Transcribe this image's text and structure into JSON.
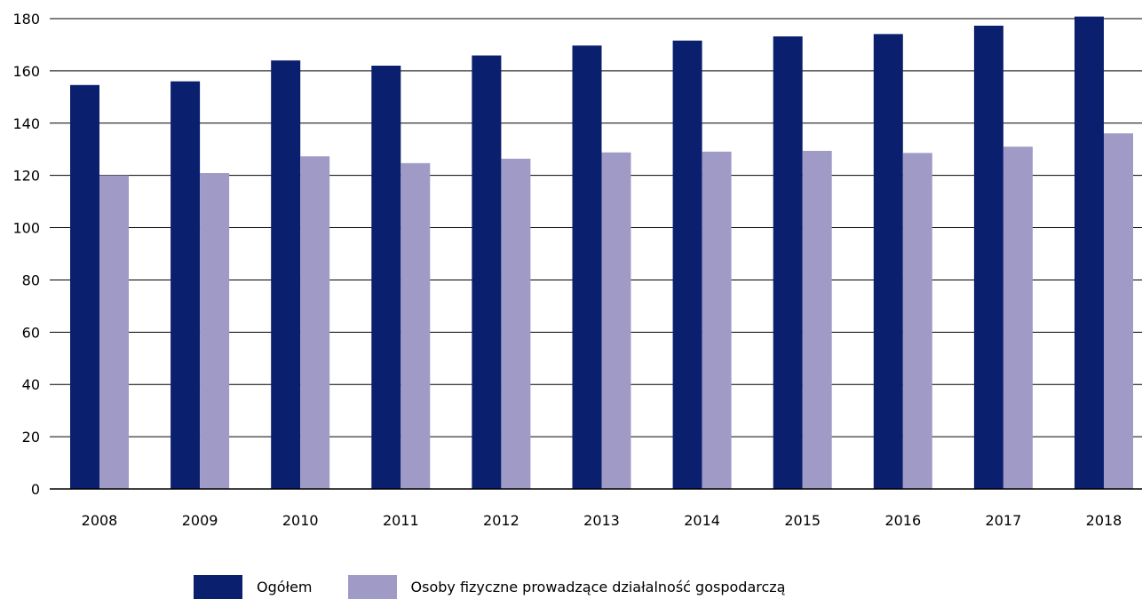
{
  "chart_data": {
    "type": "bar",
    "categories": [
      "2008",
      "2009",
      "2010",
      "2011",
      "2012",
      "2013",
      "2014",
      "2015",
      "2016",
      "2017",
      "2018"
    ],
    "series": [
      {
        "name": "Ogółem",
        "color": "#0a1f6e",
        "values": [
          154.6,
          156.0,
          164.0,
          162.0,
          165.9,
          169.7,
          171.6,
          173.2,
          174.1,
          177.3,
          180.8
        ]
      },
      {
        "name": "Osoby fizyczne prowadzące działalność gospodarczą",
        "color": "#a09bc6",
        "values": [
          120.0,
          120.9,
          127.3,
          124.7,
          126.4,
          128.8,
          129.1,
          129.4,
          128.6,
          131.0,
          136.1
        ]
      }
    ],
    "yticks": [
      "0",
      "20",
      "40",
      "60",
      "80",
      "100",
      "120",
      "140",
      "160",
      "180"
    ],
    "ylim": [
      0,
      180
    ],
    "grid": true,
    "legend_position": "bottom-center"
  }
}
